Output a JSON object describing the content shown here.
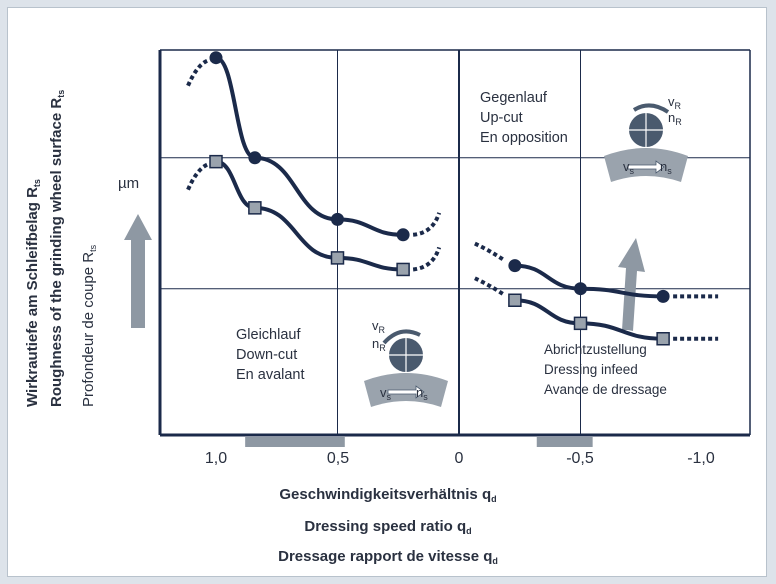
{
  "chart_data": {
    "type": "line",
    "xlabel": [
      "Geschwindigkeitsverhältnis q",
      "Dressing speed ratio q",
      "Dressage rapport de vitesse q"
    ],
    "xlabel_sub": "d",
    "ylabel": [
      "Wirkrautiefe am Schleifbelag R",
      "Roughness of the grinding wheel surface R",
      "Profondeur de coupe R"
    ],
    "ylabel_sub": "ts",
    "y_unit": "µm",
    "x_ticks": [
      "1,0",
      "0,5",
      "0",
      "-0,5",
      "-1,0"
    ],
    "xlim": [
      1.2,
      -1.15
    ],
    "ylim": [
      0,
      10
    ],
    "series": [
      {
        "marker": "circle",
        "segments": [
          {
            "x": [
              1.0,
              0.84,
              0.5,
              0.23
            ],
            "y": [
              9.8,
              7.2,
              5.6,
              5.2
            ]
          },
          {
            "x": [
              -0.23,
              -0.5,
              -0.84
            ],
            "y": [
              4.4,
              3.8,
              3.6
            ]
          }
        ]
      },
      {
        "marker": "square",
        "segments": [
          {
            "x": [
              1.0,
              0.84,
              0.5,
              0.23
            ],
            "y": [
              7.1,
              5.9,
              4.6,
              4.3
            ]
          },
          {
            "x": [
              -0.23,
              -0.5,
              -0.84
            ],
            "y": [
              3.5,
              2.9,
              2.5
            ]
          }
        ]
      }
    ],
    "grid": true,
    "shaded_x_ranges": [
      [
        0.88,
        0.47
      ],
      [
        -0.32,
        -0.55
      ]
    ],
    "annotations": {
      "upcut": [
        "Gegenlauf",
        "Up-cut",
        "En opposition"
      ],
      "downcut": [
        "Gleichlauf",
        "Down-cut",
        "En avalant"
      ],
      "infeed": [
        "Abrichtzustellung",
        "Dressing infeed",
        "Avance de dressage"
      ],
      "symbols": {
        "vR": "v",
        "nR": "n",
        "vs": "v",
        "ns": "n",
        "sub_R": "R",
        "sub_s": "s"
      }
    }
  },
  "colors": {
    "line": "#1b2a4a",
    "marker_fill": "#1b2a4a",
    "square_fill": "#9aa3ad",
    "axis": "#1b2a4a",
    "grid": "#1b2a4a",
    "arrow": "#8e98a3",
    "band": "#8e98a3",
    "wheel": "#4a5a6e",
    "wheel_band": "#9aa3ad"
  }
}
